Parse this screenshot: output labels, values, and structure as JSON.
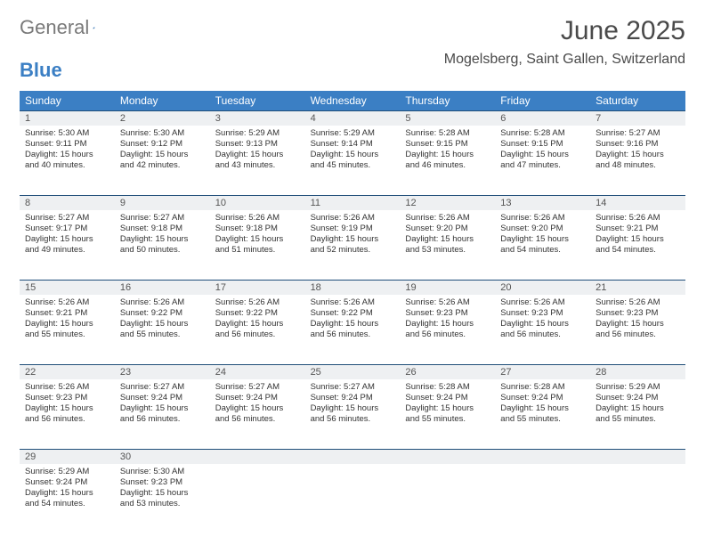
{
  "logo": {
    "gray": "General",
    "blue": "Blue"
  },
  "title": "June 2025",
  "location": "Mogelsberg, Saint Gallen, Switzerland",
  "header_bg": "#3b7fc4",
  "header_text": "#ffffff",
  "rule_color": "#1f4e79",
  "daynum_bg": "#eef0f2",
  "weekdays": [
    "Sunday",
    "Monday",
    "Tuesday",
    "Wednesday",
    "Thursday",
    "Friday",
    "Saturday"
  ],
  "weeks": [
    [
      {
        "n": "1",
        "sr": "5:30 AM",
        "ss": "9:11 PM",
        "dl": "15 hours and 40 minutes."
      },
      {
        "n": "2",
        "sr": "5:30 AM",
        "ss": "9:12 PM",
        "dl": "15 hours and 42 minutes."
      },
      {
        "n": "3",
        "sr": "5:29 AM",
        "ss": "9:13 PM",
        "dl": "15 hours and 43 minutes."
      },
      {
        "n": "4",
        "sr": "5:29 AM",
        "ss": "9:14 PM",
        "dl": "15 hours and 45 minutes."
      },
      {
        "n": "5",
        "sr": "5:28 AM",
        "ss": "9:15 PM",
        "dl": "15 hours and 46 minutes."
      },
      {
        "n": "6",
        "sr": "5:28 AM",
        "ss": "9:15 PM",
        "dl": "15 hours and 47 minutes."
      },
      {
        "n": "7",
        "sr": "5:27 AM",
        "ss": "9:16 PM",
        "dl": "15 hours and 48 minutes."
      }
    ],
    [
      {
        "n": "8",
        "sr": "5:27 AM",
        "ss": "9:17 PM",
        "dl": "15 hours and 49 minutes."
      },
      {
        "n": "9",
        "sr": "5:27 AM",
        "ss": "9:18 PM",
        "dl": "15 hours and 50 minutes."
      },
      {
        "n": "10",
        "sr": "5:26 AM",
        "ss": "9:18 PM",
        "dl": "15 hours and 51 minutes."
      },
      {
        "n": "11",
        "sr": "5:26 AM",
        "ss": "9:19 PM",
        "dl": "15 hours and 52 minutes."
      },
      {
        "n": "12",
        "sr": "5:26 AM",
        "ss": "9:20 PM",
        "dl": "15 hours and 53 minutes."
      },
      {
        "n": "13",
        "sr": "5:26 AM",
        "ss": "9:20 PM",
        "dl": "15 hours and 54 minutes."
      },
      {
        "n": "14",
        "sr": "5:26 AM",
        "ss": "9:21 PM",
        "dl": "15 hours and 54 minutes."
      }
    ],
    [
      {
        "n": "15",
        "sr": "5:26 AM",
        "ss": "9:21 PM",
        "dl": "15 hours and 55 minutes."
      },
      {
        "n": "16",
        "sr": "5:26 AM",
        "ss": "9:22 PM",
        "dl": "15 hours and 55 minutes."
      },
      {
        "n": "17",
        "sr": "5:26 AM",
        "ss": "9:22 PM",
        "dl": "15 hours and 56 minutes."
      },
      {
        "n": "18",
        "sr": "5:26 AM",
        "ss": "9:22 PM",
        "dl": "15 hours and 56 minutes."
      },
      {
        "n": "19",
        "sr": "5:26 AM",
        "ss": "9:23 PM",
        "dl": "15 hours and 56 minutes."
      },
      {
        "n": "20",
        "sr": "5:26 AM",
        "ss": "9:23 PM",
        "dl": "15 hours and 56 minutes."
      },
      {
        "n": "21",
        "sr": "5:26 AM",
        "ss": "9:23 PM",
        "dl": "15 hours and 56 minutes."
      }
    ],
    [
      {
        "n": "22",
        "sr": "5:26 AM",
        "ss": "9:23 PM",
        "dl": "15 hours and 56 minutes."
      },
      {
        "n": "23",
        "sr": "5:27 AM",
        "ss": "9:24 PM",
        "dl": "15 hours and 56 minutes."
      },
      {
        "n": "24",
        "sr": "5:27 AM",
        "ss": "9:24 PM",
        "dl": "15 hours and 56 minutes."
      },
      {
        "n": "25",
        "sr": "5:27 AM",
        "ss": "9:24 PM",
        "dl": "15 hours and 56 minutes."
      },
      {
        "n": "26",
        "sr": "5:28 AM",
        "ss": "9:24 PM",
        "dl": "15 hours and 55 minutes."
      },
      {
        "n": "27",
        "sr": "5:28 AM",
        "ss": "9:24 PM",
        "dl": "15 hours and 55 minutes."
      },
      {
        "n": "28",
        "sr": "5:29 AM",
        "ss": "9:24 PM",
        "dl": "15 hours and 55 minutes."
      }
    ],
    [
      {
        "n": "29",
        "sr": "5:29 AM",
        "ss": "9:24 PM",
        "dl": "15 hours and 54 minutes."
      },
      {
        "n": "30",
        "sr": "5:30 AM",
        "ss": "9:23 PM",
        "dl": "15 hours and 53 minutes."
      },
      null,
      null,
      null,
      null,
      null
    ]
  ],
  "labels": {
    "sunrise_prefix": "Sunrise: ",
    "sunset_prefix": "Sunset: ",
    "daylight_prefix": "Daylight: "
  }
}
